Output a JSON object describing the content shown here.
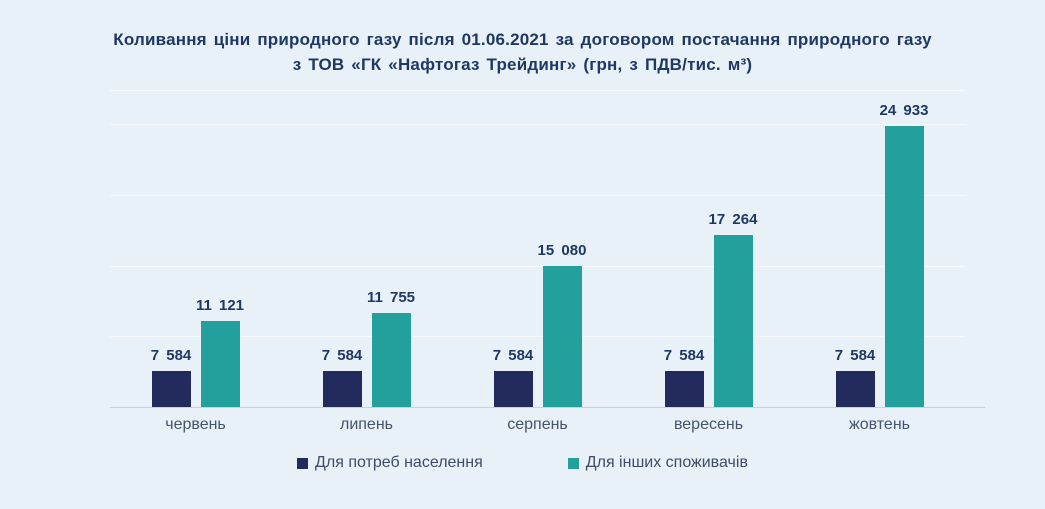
{
  "colors": {
    "background": "#E8F0F8",
    "title_text": "#1F3864",
    "data_label_text": "#203864",
    "axis_text": "#44546A",
    "axis_line": "#C7D2DD",
    "gridline": "#F5FAFE",
    "series_population": "#222B5B",
    "series_others": "#24A09C"
  },
  "chart_data": {
    "type": "bar",
    "title": "Коливання ціни природного газу після 01.06.2021 за договором постачання природного газу з ТОВ «ГК «Нафтогаз Трейдинг» (грн, з ПДВ/тис. м³)",
    "title_lines": [
      "Коливання ціни природного газу після 01.06.2021 за договором постачання природного газу",
      "з ТОВ «ГК «Нафтогаз Трейдинг» (грн, з ПДВ/тис. м³)"
    ],
    "categories": [
      "червень",
      "липень",
      "серпень",
      "вересень",
      "жовтень"
    ],
    "series": [
      {
        "key": "population",
        "name": "Для потреб населення",
        "color": "#222B5B",
        "values": [
          7584,
          7584,
          7584,
          7584,
          7584
        ],
        "labels": [
          "7 584",
          "7 584",
          "7 584",
          "7 584",
          "7 584"
        ]
      },
      {
        "key": "others",
        "name": "Для інших споживачів",
        "color": "#24A09C",
        "values": [
          11121,
          11755,
          15080,
          17264,
          24933
        ],
        "labels": [
          "11 121",
          "11 755",
          "15 080",
          "17 264",
          "24 933"
        ]
      }
    ],
    "xlabel": "",
    "ylabel": "",
    "ylim": [
      5000,
      27500
    ],
    "gridline_step": 5000,
    "grid": "horizontal-faint",
    "y_axis_labels_visible": false,
    "legend_position": "bottom-center"
  }
}
